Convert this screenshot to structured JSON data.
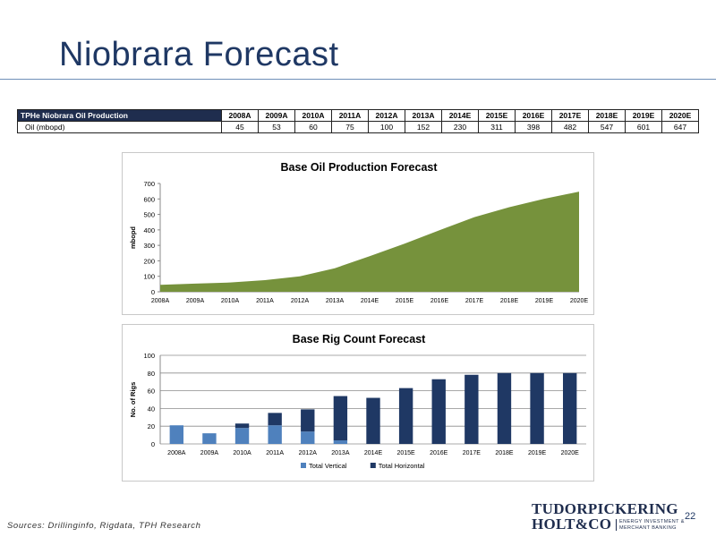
{
  "slide": {
    "title": "Niobrara Forecast",
    "page_number": "22",
    "sources": "Sources: Drillinginfo, Rigdata, TPH Research"
  },
  "logo": {
    "line1": "TUDORPICKERING",
    "line2": "HOLT&CO",
    "tagline1": "ENERGY INVESTMENT &",
    "tagline2": "MERCHANT BANKING"
  },
  "production_table": {
    "header_label": "TPHe Niobrara Oil Production",
    "row_label": "Oil (mbopd)",
    "years": [
      "2008A",
      "2009A",
      "2010A",
      "2011A",
      "2012A",
      "2013A",
      "2014E",
      "2015E",
      "2016E",
      "2017E",
      "2018E",
      "2019E",
      "2020E"
    ],
    "values": [
      "45",
      "53",
      "60",
      "75",
      "100",
      "152",
      "230",
      "311",
      "398",
      "482",
      "547",
      "601",
      "647"
    ]
  },
  "chart_data": [
    {
      "type": "area",
      "title": "Base Oil Production Forecast",
      "ylabel": "mbopd",
      "xlabel": "",
      "categories": [
        "2008A",
        "2009A",
        "2010A",
        "2011A",
        "2012A",
        "2013A",
        "2014E",
        "2015E",
        "2016E",
        "2017E",
        "2018E",
        "2019E",
        "2020E"
      ],
      "values": [
        45,
        53,
        60,
        75,
        100,
        152,
        230,
        311,
        398,
        482,
        547,
        601,
        647
      ],
      "ylim": [
        0,
        700
      ],
      "yticks": [
        "0",
        "100",
        "200",
        "300",
        "400",
        "500",
        "600",
        "700"
      ],
      "color": "#76923c",
      "grid": false
    },
    {
      "type": "bar",
      "stacked": true,
      "title": "Base Rig Count Forecast",
      "ylabel": "No. of Rigs",
      "xlabel": "",
      "categories": [
        "2008A",
        "2009A",
        "2010A",
        "2011A",
        "2012A",
        "2013A",
        "2014E",
        "2015E",
        "2016E",
        "2017E",
        "2018E",
        "2019E",
        "2020E"
      ],
      "series": [
        {
          "name": "Total Vertical",
          "color": "#4f81bd",
          "values": [
            21,
            12,
            18,
            21,
            14,
            4,
            0,
            0,
            0,
            0,
            0,
            0,
            0
          ]
        },
        {
          "name": "Total Horizontal",
          "color": "#1f3864",
          "values": [
            0,
            0,
            5,
            14,
            25,
            50,
            52,
            63,
            73,
            78,
            80,
            80,
            80
          ]
        }
      ],
      "ylim": [
        0,
        100
      ],
      "yticks": [
        "0",
        "20",
        "40",
        "60",
        "80",
        "100"
      ],
      "grid": true,
      "legend": "bottom"
    }
  ]
}
